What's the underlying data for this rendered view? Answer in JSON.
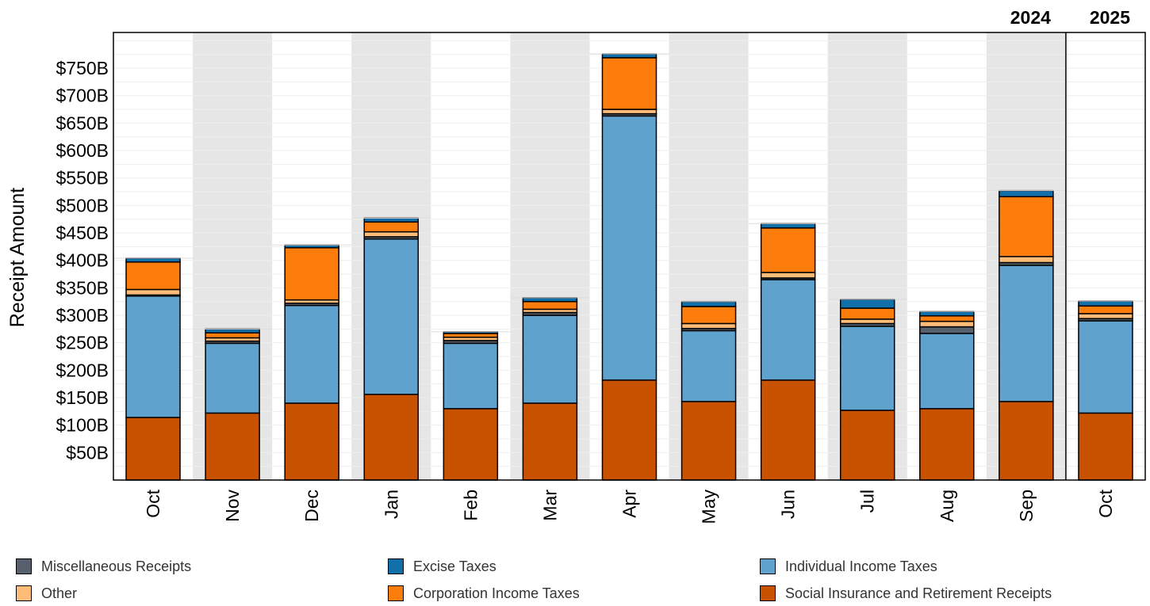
{
  "chart_data": {
    "type": "bar",
    "stacked": true,
    "title": "",
    "xlabel": "",
    "ylabel": "Receipt Amount",
    "ylim": [
      0,
      815
    ],
    "yticks": [
      50,
      100,
      150,
      200,
      250,
      300,
      350,
      400,
      450,
      500,
      550,
      600,
      650,
      700,
      750
    ],
    "ytick_labels": [
      "$50B",
      "$100B",
      "$150B",
      "$200B",
      "$250B",
      "$300B",
      "$350B",
      "$400B",
      "$450B",
      "$500B",
      "$550B",
      "$600B",
      "$650B",
      "$700B",
      "$750B"
    ],
    "categories": [
      "Oct",
      "Nov",
      "Dec",
      "Jan",
      "Feb",
      "Mar",
      "Apr",
      "May",
      "Jun",
      "Jul",
      "Aug",
      "Sep",
      "Oct"
    ],
    "year_groups": [
      {
        "label": "2024",
        "start": 0,
        "end": 11
      },
      {
        "label": "2025",
        "start": 12,
        "end": 12
      }
    ],
    "grid": true,
    "legend_position": "bottom",
    "series": [
      {
        "name": "Social Insurance and Retirement Receipts",
        "color": "#c85200",
        "values": [
          114,
          122,
          140,
          156,
          130,
          140,
          182,
          143,
          182,
          127,
          130,
          143,
          122
        ]
      },
      {
        "name": "Individual Income Taxes",
        "color": "#5fa2ce",
        "values": [
          221,
          127,
          178,
          283,
          119,
          160,
          481,
          129,
          183,
          153,
          137,
          248,
          168
        ]
      },
      {
        "name": "Miscellaneous Receipts",
        "color": "#57606c",
        "values": [
          2,
          4,
          4,
          4,
          5,
          5,
          4,
          4,
          3,
          5,
          12,
          5,
          4
        ]
      },
      {
        "name": "Other",
        "color": "#ffbc79",
        "values": [
          10,
          6,
          6,
          9,
          6,
          6,
          8,
          9,
          10,
          8,
          10,
          11,
          9
        ]
      },
      {
        "name": "Corporation Income Taxes",
        "color": "#fc7d0b",
        "values": [
          50,
          9,
          95,
          18,
          7,
          14,
          94,
          31,
          81,
          20,
          10,
          109,
          14
        ]
      },
      {
        "name": "Excise Taxes",
        "color": "#1170aa",
        "values": [
          7,
          7,
          5,
          7,
          3,
          7,
          7,
          9,
          8,
          16,
          8,
          11,
          9
        ]
      }
    ]
  },
  "legend": {
    "items": [
      {
        "label": "Miscellaneous Receipts",
        "color": "#57606c"
      },
      {
        "label": "Other",
        "color": "#ffbc79"
      },
      {
        "label": "Excise Taxes",
        "color": "#1170aa"
      },
      {
        "label": "Corporation Income Taxes",
        "color": "#fc7d0b"
      },
      {
        "label": "Individual Income Taxes",
        "color": "#5fa2ce"
      },
      {
        "label": "Social Insurance and Retirement Receipts",
        "color": "#c85200"
      }
    ]
  },
  "colors": {
    "band_shade": "#e6e6e6",
    "grid": "#eeeeee",
    "axis": "#000000"
  }
}
